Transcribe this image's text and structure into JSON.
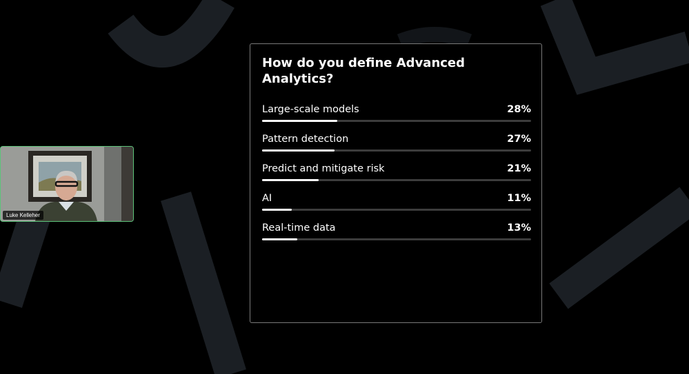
{
  "poll": {
    "question": "How do you define Advanced Analytics?",
    "options": [
      {
        "label": "Large-scale models",
        "percent_label": "28%",
        "percent": 28
      },
      {
        "label": "Pattern detection",
        "percent_label": "27%",
        "percent": 27
      },
      {
        "label": "Predict and mitigate risk",
        "percent_label": "21%",
        "percent": 21
      },
      {
        "label": "AI",
        "percent_label": "11%",
        "percent": 11
      },
      {
        "label": "Real-time data",
        "percent_label": "13%",
        "percent": 13
      }
    ]
  },
  "speaker": {
    "name": "Luke Kelleher"
  },
  "colors": {
    "background": "#000000",
    "decorative_shapes": "#1b1f24",
    "bar_fill": "#ffffff",
    "bar_track": "#3c3c3c",
    "speaker_border": "#5cc47a"
  }
}
